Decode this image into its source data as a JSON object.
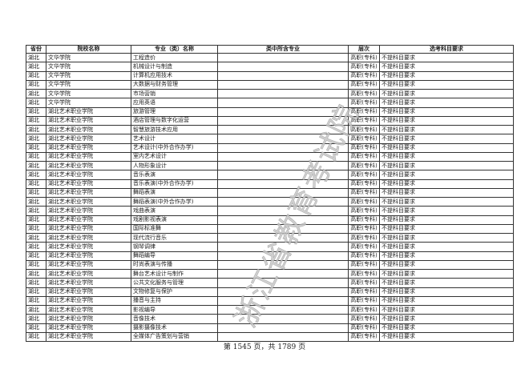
{
  "table": {
    "headers": [
      "省份",
      "院校名称",
      "专业（类）名称",
      "类中所含专业",
      "层次",
      "选考科目要求"
    ],
    "rows": [
      [
        "湖北",
        "文华学院",
        "工程造价",
        "",
        "高职(专科)",
        "不提科目要求"
      ],
      [
        "湖北",
        "文华学院",
        "机械设计与制造",
        "",
        "高职(专科)",
        "不提科目要求"
      ],
      [
        "湖北",
        "文华学院",
        "计算机应用技术",
        "",
        "高职(专科)",
        "不提科目要求"
      ],
      [
        "湖北",
        "文华学院",
        "大数据与财务管理",
        "",
        "高职(专科)",
        "不提科目要求"
      ],
      [
        "湖北",
        "文华学院",
        "市场营销",
        "",
        "高职(专科)",
        "不提科目要求"
      ],
      [
        "湖北",
        "文华学院",
        "应用英语",
        "",
        "高职(专科)",
        "不提科目要求"
      ],
      [
        "湖北",
        "湖北艺术职业学院",
        "旅游管理",
        "",
        "高职(专科)",
        "不提科目要求"
      ],
      [
        "湖北",
        "湖北艺术职业学院",
        "酒店管理与数字化运营",
        "",
        "高职(专科)",
        "不提科目要求"
      ],
      [
        "湖北",
        "湖北艺术职业学院",
        "智慧旅游技术应用",
        "",
        "高职(专科)",
        "不提科目要求"
      ],
      [
        "湖北",
        "湖北艺术职业学院",
        "艺术设计",
        "",
        "高职(专科)",
        "不提科目要求"
      ],
      [
        "湖北",
        "湖北艺术职业学院",
        "艺术设计(中外合作办学)",
        "",
        "高职(专科)",
        "不提科目要求"
      ],
      [
        "湖北",
        "湖北艺术职业学院",
        "室内艺术设计",
        "",
        "高职(专科)",
        "不提科目要求"
      ],
      [
        "湖北",
        "湖北艺术职业学院",
        "人物形象设计",
        "",
        "高职(专科)",
        "不提科目要求"
      ],
      [
        "湖北",
        "湖北艺术职业学院",
        "音乐表演",
        "",
        "高职(专科)",
        "不提科目要求"
      ],
      [
        "湖北",
        "湖北艺术职业学院",
        "音乐表演(中外合作办学)",
        "",
        "高职(专科)",
        "不提科目要求"
      ],
      [
        "湖北",
        "湖北艺术职业学院",
        "舞蹈表演",
        "",
        "高职(专科)",
        "不提科目要求"
      ],
      [
        "湖北",
        "湖北艺术职业学院",
        "舞蹈表演(中外合作办学)",
        "",
        "高职(专科)",
        "不提科目要求"
      ],
      [
        "湖北",
        "湖北艺术职业学院",
        "戏曲表演",
        "",
        "高职(专科)",
        "不提科目要求"
      ],
      [
        "湖北",
        "湖北艺术职业学院",
        "戏剧影视表演",
        "",
        "高职(专科)",
        "不提科目要求"
      ],
      [
        "湖北",
        "湖北艺术职业学院",
        "国际标准舞",
        "",
        "高职(专科)",
        "不提科目要求"
      ],
      [
        "湖北",
        "湖北艺术职业学院",
        "现代流行音乐",
        "",
        "高职(专科)",
        "不提科目要求"
      ],
      [
        "湖北",
        "湖北艺术职业学院",
        "钢琴调律",
        "",
        "高职(专科)",
        "不提科目要求"
      ],
      [
        "湖北",
        "湖北艺术职业学院",
        "舞蹈编导",
        "",
        "高职(专科)",
        "不提科目要求"
      ],
      [
        "湖北",
        "湖北艺术职业学院",
        "时尚表演与传播",
        "",
        "高职(专科)",
        "不提科目要求"
      ],
      [
        "湖北",
        "湖北艺术职业学院",
        "舞台艺术设计与制作",
        "",
        "高职(专科)",
        "不提科目要求"
      ],
      [
        "湖北",
        "湖北艺术职业学院",
        "公共文化服务与管理",
        "",
        "高职(专科)",
        "不提科目要求"
      ],
      [
        "湖北",
        "湖北艺术职业学院",
        "文物修复与保护",
        "",
        "高职(专科)",
        "不提科目要求"
      ],
      [
        "湖北",
        "湖北艺术职业学院",
        "播音与主持",
        "",
        "高职(专科)",
        "不提科目要求"
      ],
      [
        "湖北",
        "湖北艺术职业学院",
        "影视编导",
        "",
        "高职(专科)",
        "不提科目要求"
      ],
      [
        "湖北",
        "湖北艺术职业学院",
        "音像技术",
        "",
        "高职(专科)",
        "不提科目要求"
      ],
      [
        "湖北",
        "湖北艺术职业学院",
        "摄影摄像技术",
        "",
        "高职(专科)",
        "不提科目要求"
      ],
      [
        "湖北",
        "湖北艺术职业学院",
        "全媒体广告策划与营销",
        "",
        "高职(专科)",
        "不提科目要求"
      ]
    ]
  },
  "watermark": "浙江省教育考试院",
  "footer": "第 1545 页，共 1789 页"
}
